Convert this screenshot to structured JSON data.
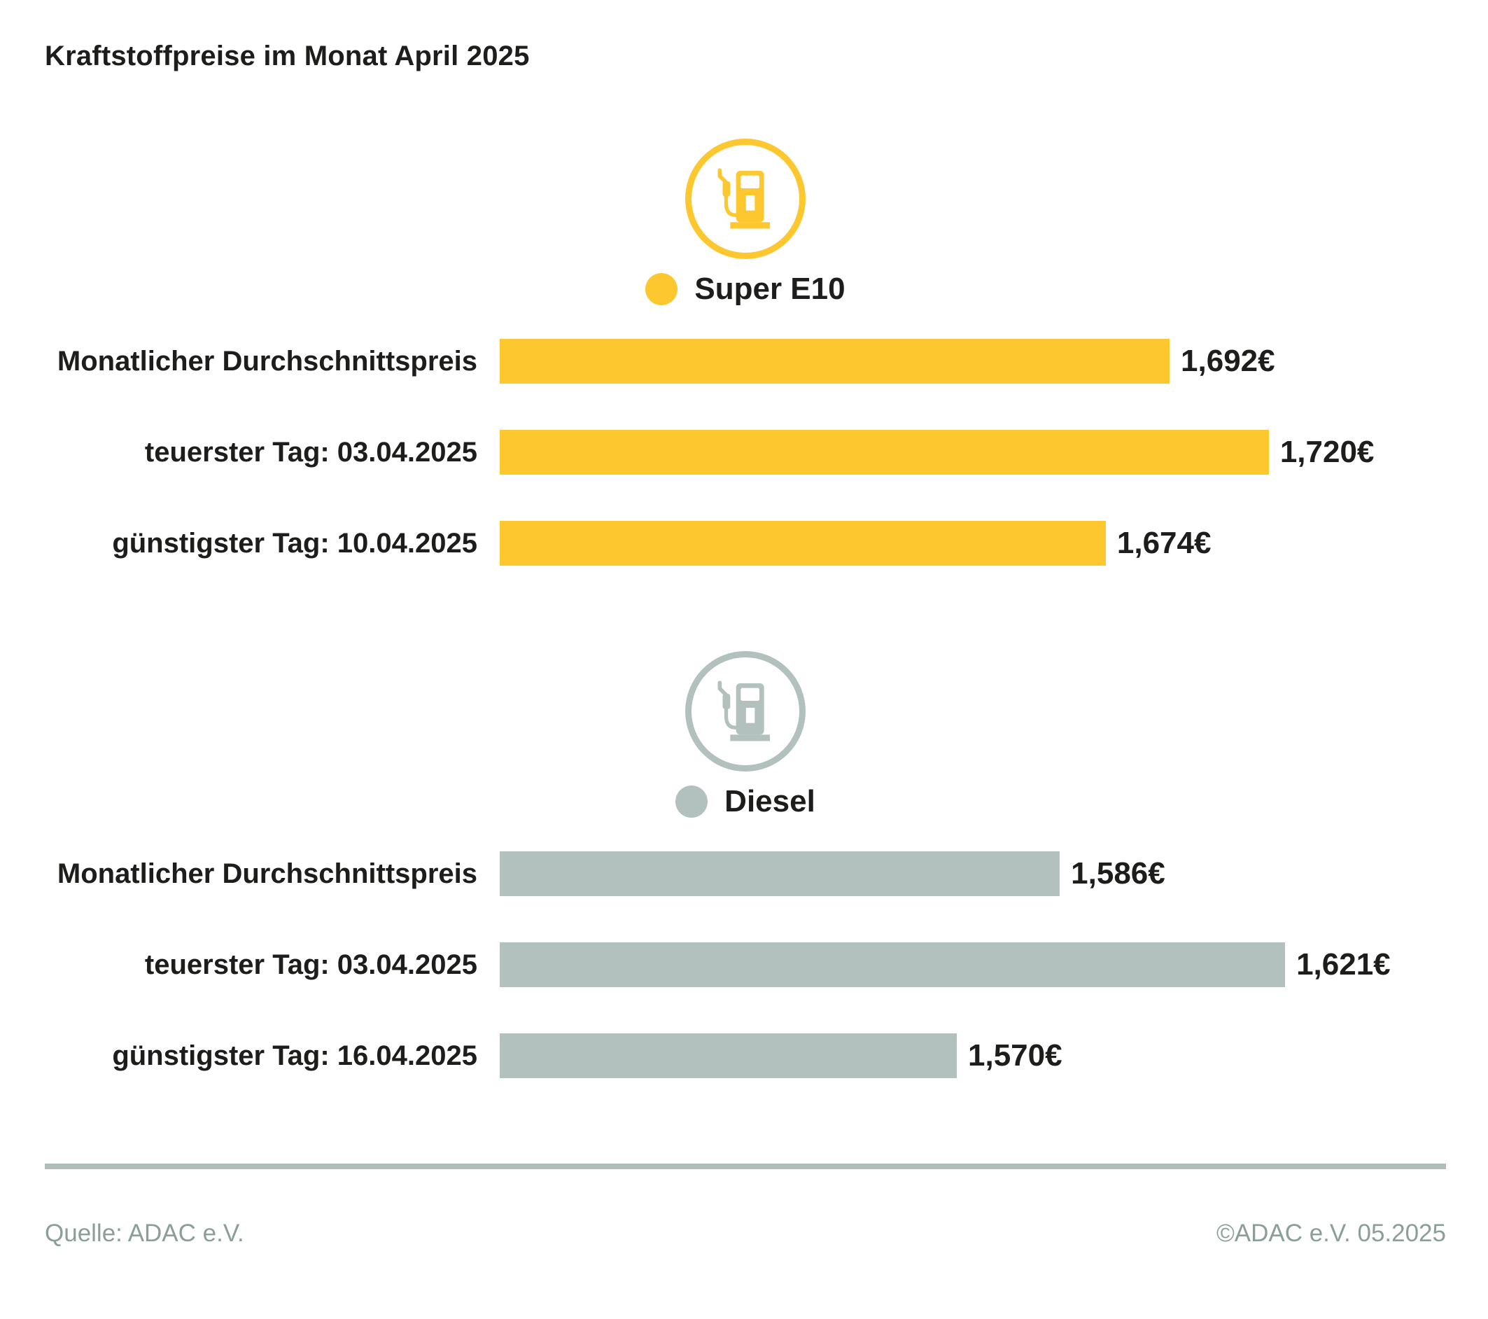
{
  "title": "Kraftstoffpreise im Monat April 2025",
  "colors": {
    "e10": "#FDC72F",
    "diesel": "#B2C1BD",
    "text": "#1D1D1B",
    "footer_text": "#8C9E98",
    "divider": "#AFBEB9"
  },
  "footer": {
    "source": "Quelle: ADAC e.V.",
    "copyright": "©ADAC e.V. 05.2025"
  },
  "chart_data": {
    "type": "bar",
    "orientation": "horizontal",
    "title": "Kraftstoffpreise im Monat April 2025",
    "grid": false,
    "legend_position": "above-bars-centered",
    "sections": [
      {
        "fuel": "Super E10",
        "icon": "fuel-pump-icon",
        "color": "#FDC72F",
        "xlim": [
          1.503,
          1.77
        ],
        "rows": [
          {
            "label": "Monatlicher Durchschnittspreis",
            "value_eur": 1.692,
            "value_label": "1,692€"
          },
          {
            "label": "teuerster Tag: 03.04.2025",
            "value_eur": 1.72,
            "value_label": "1,720€"
          },
          {
            "label": "günstigster Tag: 10.04.2025",
            "value_eur": 1.674,
            "value_label": "1,674€"
          }
        ]
      },
      {
        "fuel": "Diesel",
        "icon": "fuel-pump-icon",
        "color": "#B2C1BD",
        "xlim": [
          1.499,
          1.646
        ],
        "rows": [
          {
            "label": "Monatlicher Durchschnittspreis",
            "value_eur": 1.586,
            "value_label": "1,586€"
          },
          {
            "label": "teuerster Tag: 03.04.2025",
            "value_eur": 1.621,
            "value_label": "1,621€"
          },
          {
            "label": "günstigster Tag: 16.04.2025",
            "value_eur": 1.57,
            "value_label": "1,570€"
          }
        ]
      }
    ]
  }
}
